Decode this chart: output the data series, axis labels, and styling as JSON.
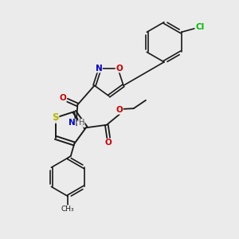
{
  "bg_color": "#ebebeb",
  "bond_color": "#1a1a1a",
  "S_color": "#b8b800",
  "N_color": "#0000cc",
  "O_color": "#cc0000",
  "Cl_color": "#00bb00",
  "H_color": "#555555",
  "figsize": [
    3.0,
    3.0
  ],
  "dpi": 100,
  "xlim": [
    0,
    10
  ],
  "ylim": [
    0,
    10
  ]
}
